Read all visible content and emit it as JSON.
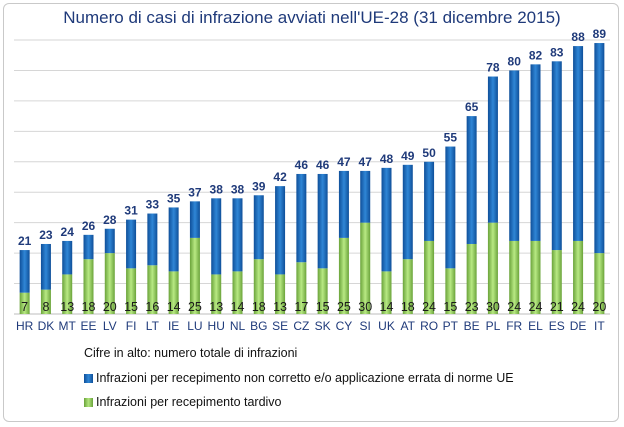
{
  "title": "Numero di casi di infrazione avviati nell'UE-28 (31 dicembre 2015)",
  "note": "Cifre in alto: numero totale di infrazioni",
  "colors": {
    "total": "#1a65b5",
    "late": "#8cc85a",
    "total_label": "#1f3a7a"
  },
  "chart_data": {
    "type": "bar",
    "title": "Numero di casi di infrazione avviati nell'UE-28 (31 dicembre 2015)",
    "xlabel": "",
    "ylabel": "",
    "grid": true,
    "legend_placement": "bottom",
    "ylim": [
      0,
      90
    ],
    "categories": [
      "HR",
      "DK",
      "MT",
      "EE",
      "LV",
      "FI",
      "LT",
      "IE",
      "LU",
      "HU",
      "NL",
      "BG",
      "SE",
      "CZ",
      "SK",
      "CY",
      "SI",
      "UK",
      "AT",
      "RO",
      "PT",
      "BE",
      "PL",
      "FR",
      "EL",
      "ES",
      "DE",
      "IT"
    ],
    "totals": [
      21,
      23,
      24,
      26,
      28,
      31,
      33,
      35,
      37,
      38,
      38,
      39,
      42,
      46,
      46,
      47,
      47,
      48,
      49,
      50,
      55,
      65,
      78,
      80,
      82,
      83,
      88,
      89
    ],
    "series": [
      {
        "name": "Infrazioni per recepimento non corretto e/o applicazione errata di norme UE",
        "values": [
          14,
          15,
          11,
          8,
          8,
          16,
          17,
          21,
          12,
          25,
          24,
          21,
          29,
          29,
          31,
          22,
          17,
          34,
          31,
          26,
          40,
          42,
          48,
          56,
          58,
          62,
          64,
          69
        ]
      },
      {
        "name": "Infrazioni per recepimento tardivo",
        "values": [
          7,
          8,
          13,
          18,
          20,
          15,
          16,
          14,
          25,
          13,
          14,
          18,
          13,
          17,
          15,
          25,
          30,
          14,
          18,
          24,
          15,
          23,
          30,
          24,
          24,
          21,
          24,
          20
        ]
      }
    ]
  }
}
